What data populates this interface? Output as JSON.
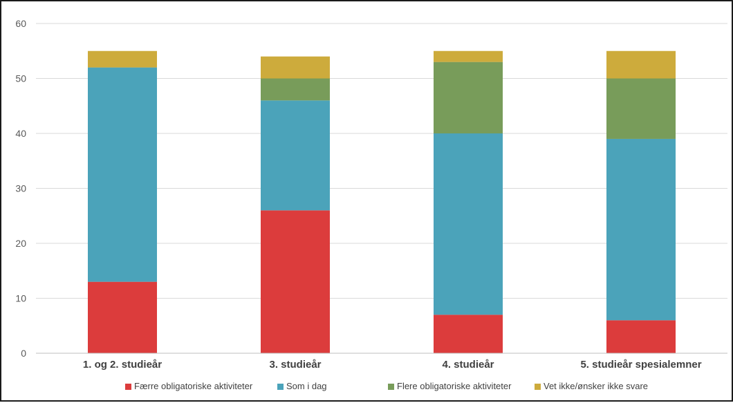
{
  "chart_data": {
    "type": "bar",
    "stacked": true,
    "title": "",
    "xlabel": "",
    "ylabel": "",
    "ylim": [
      0,
      60
    ],
    "yticks": [
      0,
      10,
      20,
      30,
      40,
      50,
      60
    ],
    "grid": true,
    "legend_position": "bottom",
    "categories": [
      "1. og 2. studieår",
      "3. studieår",
      "4. studieår",
      "5. studieår spesialemner"
    ],
    "series": [
      {
        "name": "Færre obligatoriske aktiviteter",
        "color": "#dc3c3c",
        "values": [
          13,
          26,
          7,
          6
        ]
      },
      {
        "name": "Som i dag",
        "color": "#4ba3ba",
        "values": [
          39,
          20,
          33,
          33
        ]
      },
      {
        "name": "Flere obligatoriske aktiviteter",
        "color": "#789c5a",
        "values": [
          0,
          4,
          13,
          11
        ]
      },
      {
        "name": "Vet ikke/ønsker ikke svare",
        "color": "#cdab3c",
        "values": [
          3,
          4,
          2,
          5
        ]
      }
    ]
  }
}
